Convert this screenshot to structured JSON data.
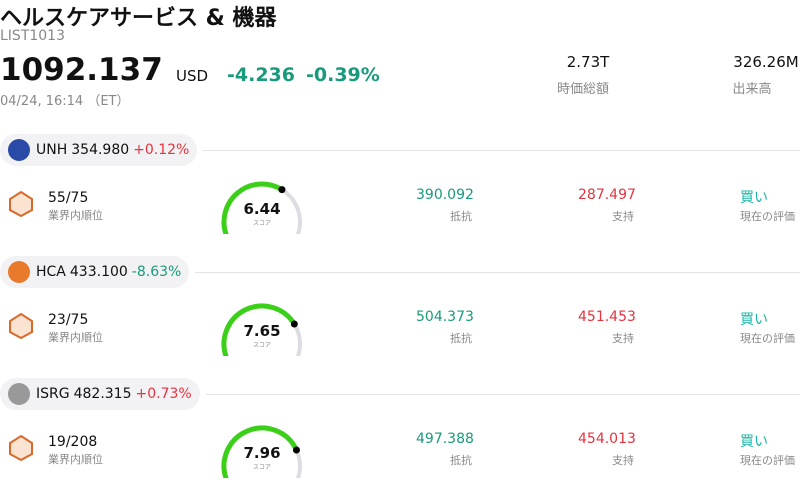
{
  "header": {
    "title": "ヘルスケアサービス & 機器",
    "id": "LIST1013",
    "price": "1092.137",
    "currency": "USD",
    "change": "-4.236",
    "change_pct": "-0.39%",
    "change_color": "#1a9a7c",
    "date": "04/24, 16:14 （ET）",
    "stats": [
      {
        "value": "2.73T",
        "label": "時価総額"
      },
      {
        "value": "326.26M",
        "label": "出来高"
      }
    ]
  },
  "stocks": [
    {
      "ticker": "UNH",
      "price": "354.980",
      "change_pct": "+0.12%",
      "change_color": "#e5333f",
      "rank": "55/75",
      "rank_label": "業界内順位",
      "score": 6.44,
      "score_label": "スコア",
      "resistance": "390.092",
      "resistance_label": "抵抗",
      "support": "287.497",
      "support_label": "支持",
      "rating": "買い",
      "rating_label": "現在の評価"
    },
    {
      "ticker": "HCA",
      "price": "433.100",
      "change_pct": "-8.63%",
      "change_color": "#1a9a7c",
      "rank": "23/75",
      "rank_label": "業界内順位",
      "score": 7.65,
      "score_label": "スコア",
      "resistance": "504.373",
      "resistance_label": "抵抗",
      "support": "451.453",
      "support_label": "支持",
      "rating": "買い",
      "rating_label": "現在の評価"
    },
    {
      "ticker": "ISRG",
      "price": "482.315",
      "change_pct": "+0.73%",
      "change_color": "#e5333f",
      "rank": "19/208",
      "rank_label": "業界内順位",
      "score": 7.96,
      "score_label": "スコア",
      "resistance": "497.388",
      "resistance_label": "抵抗",
      "support": "454.013",
      "support_label": "支持",
      "rating": "買い",
      "rating_label": "現在の評価"
    }
  ]
}
